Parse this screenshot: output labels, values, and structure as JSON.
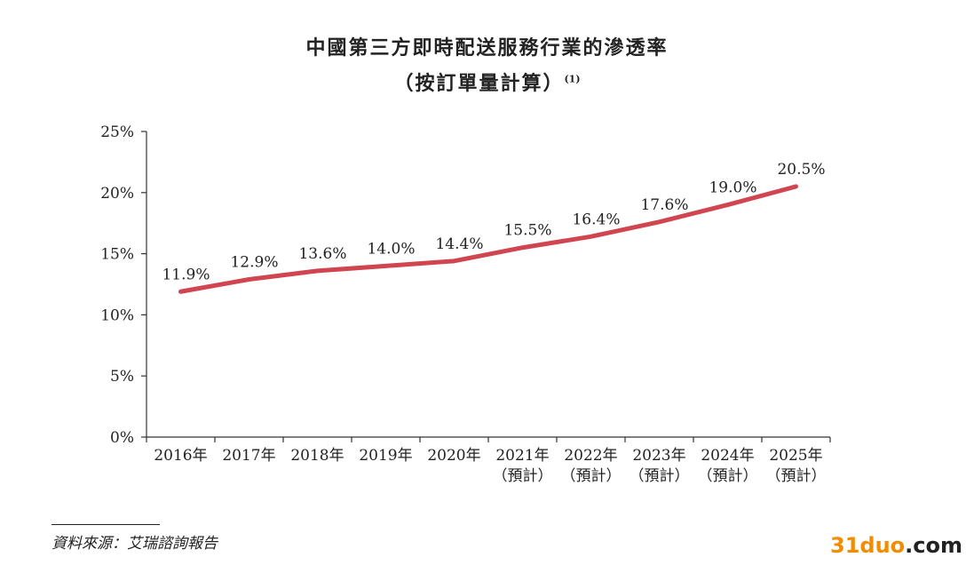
{
  "title_line1": "中國第三方即時配送服務行業的滲透率",
  "title_line2": "（按訂單量計算）",
  "title_note": "(1)",
  "source": "資料來源：艾瑞諮詢報告",
  "watermark": {
    "part1": "31duo",
    "part2": ".com"
  },
  "chart_data": {
    "type": "line",
    "title": "中國第三方即時配送服務行業的滲透率（按訂單量計算）",
    "categories": [
      "2016年",
      "2017年",
      "2018年",
      "2019年",
      "2020年",
      "2021年",
      "2022年",
      "2023年",
      "2024年",
      "2025年"
    ],
    "category_notes": [
      "",
      "",
      "",
      "",
      "",
      "（預計）",
      "（預計）",
      "（預計）",
      "（預計）",
      "（預計）"
    ],
    "series": [
      {
        "values": [
          11.9,
          12.9,
          13.6,
          14.0,
          14.4,
          15.5,
          16.4,
          17.6,
          19.0,
          20.5
        ],
        "labels": [
          "11.9%",
          "12.9%",
          "13.6%",
          "14.0%",
          "14.4%",
          "15.5%",
          "16.4%",
          "17.6%",
          "19.0%",
          "20.5%"
        ],
        "color": "#d0454f"
      }
    ],
    "ylim": [
      0,
      25
    ],
    "yticks": [
      0,
      5,
      10,
      15,
      20,
      25
    ],
    "ytick_labels": [
      "0%",
      "5%",
      "10%",
      "15%",
      "20%",
      "25%"
    ],
    "grid": false,
    "xlabel": "",
    "ylabel": ""
  }
}
